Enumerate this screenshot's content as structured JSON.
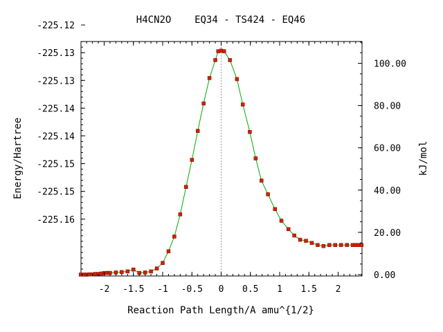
{
  "chart_data": {
    "type": "scatter",
    "title": "H4CN2O    EQ34 - TS424 - EQ46",
    "xlabel": "Reaction Path Length/A amu^{1/2}",
    "ylabel": "Energy/Hartree",
    "y2label": "kJ/mol",
    "xlim": [
      -2.4,
      2.4
    ],
    "ylim_left": [
      -225.165,
      -225.117
    ],
    "ylim_right": [
      0,
      110
    ],
    "grid": false,
    "legend": "none",
    "x_ticks": [
      {
        "value": -2,
        "label": "-2"
      },
      {
        "value": -1.5,
        "label": "-1.5"
      },
      {
        "value": -1,
        "label": "-1"
      },
      {
        "value": -0.5,
        "label": "-0.5"
      },
      {
        "value": 0,
        "label": "0"
      },
      {
        "value": 0.5,
        "label": "0.5"
      },
      {
        "value": 1,
        "label": "1"
      },
      {
        "value": 1.5,
        "label": "1.5"
      },
      {
        "value": 2,
        "label": "2"
      }
    ],
    "y_left_ticks": [
      {
        "value": -225.12,
        "label": "-225.12"
      },
      {
        "value": -225.125,
        "label": "-225.13"
      },
      {
        "value": -225.13,
        "label": "-225.13"
      },
      {
        "value": -225.135,
        "label": "-225.14"
      },
      {
        "value": -225.14,
        "label": "-225.14"
      },
      {
        "value": -225.145,
        "label": "-225.15"
      },
      {
        "value": -225.15,
        "label": "-225.15"
      },
      {
        "value": -225.155,
        "label": "-225.16"
      }
    ],
    "y_right_ticks": [
      {
        "value": 0,
        "label": "0.00"
      },
      {
        "value": 20,
        "label": "20.00"
      },
      {
        "value": 40,
        "label": "40.00"
      },
      {
        "value": 60,
        "label": "60.00"
      },
      {
        "value": 80,
        "label": "80.00"
      },
      {
        "value": 100,
        "label": "100.00"
      }
    ],
    "ts_marker_x": 0,
    "colors": {
      "curve": "#00aa00",
      "points": "#cc2200",
      "point_edge": "#880000",
      "ts_line": "#999999"
    },
    "series": [
      {
        "x": [
          -2.4,
          -2.35,
          -2.3,
          -2.25,
          -2.2,
          -2.15,
          -2.1,
          -2.05,
          -2.0,
          -1.95,
          -1.9,
          -1.8,
          -1.7,
          -1.6,
          -1.5,
          -1.4,
          -1.3,
          -1.2,
          -1.1,
          -1.0,
          -0.9,
          -0.8,
          -0.7,
          -0.6,
          -0.5,
          -0.4,
          -0.3,
          -0.2,
          -0.1,
          -0.05,
          0.0,
          0.05,
          0.15,
          0.27,
          0.37,
          0.49,
          0.59,
          0.69,
          0.8,
          0.92,
          1.03,
          1.15,
          1.25,
          1.35,
          1.45,
          1.55,
          1.65,
          1.75,
          1.85,
          1.95,
          2.05,
          2.15,
          2.25,
          2.3,
          2.35,
          2.4
        ],
        "y_kjmol": [
          0.0,
          0.0,
          0.0,
          0.1,
          0.1,
          0.3,
          0.3,
          0.5,
          0.7,
          0.8,
          0.8,
          1.0,
          1.2,
          1.5,
          2.4,
          0.8,
          1.0,
          1.5,
          2.9,
          5.5,
          11.0,
          18.0,
          28.5,
          41.5,
          54.3,
          68.0,
          81.0,
          93.0,
          101.5,
          105.7,
          106.0,
          105.7,
          101.5,
          92.5,
          80.5,
          67.5,
          55.0,
          44.5,
          38.0,
          31.0,
          25.5,
          21.5,
          18.5,
          16.5,
          16.0,
          15.0,
          14.0,
          13.5,
          14.0,
          14.0,
          14.0,
          14.0,
          14.0,
          14.0,
          14.0,
          14.0
        ]
      }
    ]
  }
}
